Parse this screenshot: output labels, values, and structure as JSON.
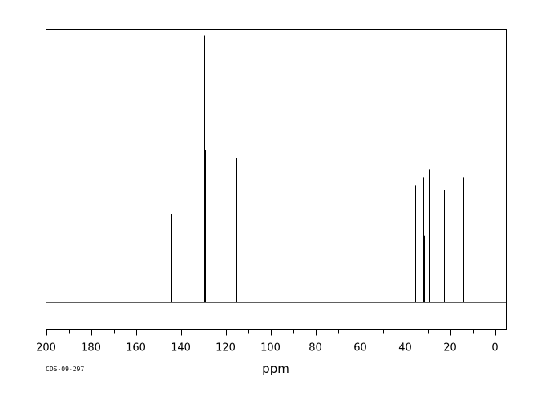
{
  "chart_data": {
    "type": "line",
    "chart_style": "NMR spectrum (stick peaks)",
    "title": "",
    "xlabel": "ppm",
    "ylabel": "",
    "xlim": [
      200,
      -5
    ],
    "x_reversed": true,
    "ylim": [
      -0.1,
      1.0
    ],
    "x_ticks": [
      200,
      180,
      160,
      140,
      120,
      100,
      80,
      60,
      40,
      20,
      0
    ],
    "x_tick_labels": [
      "200",
      "180",
      "160",
      "140",
      "120",
      "100",
      "80",
      "60",
      "40",
      "20",
      "0"
    ],
    "x_minor_step": 10,
    "grid": false,
    "legend": "none",
    "sample_code": "CDS-09-297",
    "line_color": "#000000",
    "peaks": [
      {
        "x": 144.4,
        "y": 0.33
      },
      {
        "x": 133.5,
        "y": 0.3
      },
      {
        "x": 129.5,
        "y": 1.0
      },
      {
        "x": 129.1,
        "y": 0.57
      },
      {
        "x": 115.6,
        "y": 0.94
      },
      {
        "x": 115.3,
        "y": 0.54
      },
      {
        "x": 35.4,
        "y": 0.44
      },
      {
        "x": 32.1,
        "y": 0.47
      },
      {
        "x": 31.6,
        "y": 0.25
      },
      {
        "x": 29.5,
        "y": 0.5
      },
      {
        "x": 29.2,
        "y": 0.99
      },
      {
        "x": 22.6,
        "y": 0.42
      },
      {
        "x": 14.1,
        "y": 0.47
      }
    ]
  }
}
